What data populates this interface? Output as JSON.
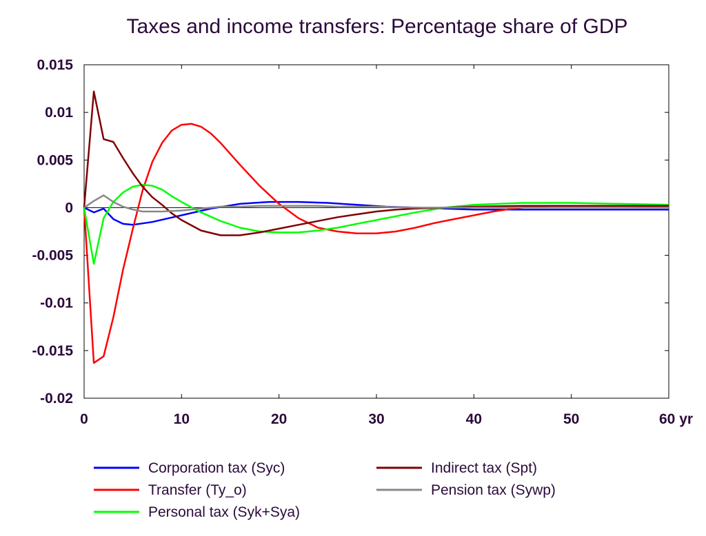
{
  "chart_data": {
    "type": "line",
    "title": "Taxes and income transfers: Percentage share of GDP",
    "xlabel": "",
    "ylabel": "",
    "xlim": [
      0,
      60
    ],
    "ylim": [
      -0.02,
      0.015
    ],
    "x_ticks": [
      0,
      10,
      20,
      30,
      40,
      50,
      60
    ],
    "x_tick_labels": [
      "0",
      "10",
      "20",
      "30",
      "40",
      "50",
      "60 yr"
    ],
    "y_ticks": [
      0.015,
      0.01,
      0.005,
      0,
      -0.005,
      -0.01,
      -0.015,
      -0.02
    ],
    "y_tick_labels": [
      "0.015",
      "0.01",
      "0.005",
      "0",
      "-0.005",
      "-0.01",
      "-0.015",
      "-0.02"
    ],
    "grid": false,
    "zero_line": true,
    "legend_position": "bottom",
    "series": [
      {
        "name": "Corporation tax (Syc)",
        "color": "#0000ff",
        "x": [
          0,
          1,
          2,
          3,
          4,
          5,
          7,
          10,
          13,
          16,
          19,
          22,
          25,
          28,
          31,
          34,
          37,
          40,
          45,
          50,
          55,
          60
        ],
        "y": [
          0,
          -0.0005,
          -0.0001,
          -0.0012,
          -0.0017,
          -0.0018,
          -0.0015,
          -0.0008,
          -0.0001,
          0.0004,
          0.0006,
          0.0006,
          0.0005,
          0.0003,
          0.0001,
          0.0,
          -0.0001,
          -0.0002,
          -0.0002,
          -0.0002,
          -0.0002,
          -0.0002
        ]
      },
      {
        "name": "Transfer (Ty_o)",
        "color": "#ff0000",
        "x": [
          0,
          1,
          2,
          3,
          4,
          5,
          6,
          7,
          8,
          9,
          10,
          11,
          12,
          13,
          14,
          16,
          18,
          20,
          22,
          24,
          26,
          28,
          30,
          32,
          34,
          36,
          38,
          40,
          42,
          44,
          46,
          48,
          50,
          55,
          60
        ],
        "y": [
          0,
          -0.0163,
          -0.0156,
          -0.0115,
          -0.0065,
          -0.0022,
          0.0018,
          0.0048,
          0.0068,
          0.0081,
          0.0087,
          0.0088,
          0.0085,
          0.0078,
          0.0068,
          0.0045,
          0.0023,
          0.0004,
          -0.0011,
          -0.0021,
          -0.0025,
          -0.0027,
          -0.0027,
          -0.0025,
          -0.0021,
          -0.0016,
          -0.0012,
          -0.0008,
          -0.0004,
          -0.0001,
          0.0001,
          0.0002,
          0.0002,
          0.0002,
          0.0001
        ]
      },
      {
        "name": "Personal tax (Syk+Sya)",
        "color": "#00ff00",
        "x": [
          0,
          1,
          2,
          3,
          4,
          5,
          6,
          7,
          8,
          9,
          10,
          12,
          14,
          16,
          18,
          20,
          22,
          24,
          26,
          28,
          30,
          32,
          34,
          37,
          40,
          45,
          50,
          55,
          60
        ],
        "y": [
          0,
          -0.0059,
          -0.0011,
          0.0006,
          0.0016,
          0.0022,
          0.0024,
          0.0023,
          0.0019,
          0.0012,
          0.0006,
          -0.0005,
          -0.0014,
          -0.0021,
          -0.0025,
          -0.0026,
          -0.0026,
          -0.0024,
          -0.0021,
          -0.0017,
          -0.0013,
          -0.0009,
          -0.0005,
          0.0,
          0.0003,
          0.0005,
          0.0005,
          0.0004,
          0.0003
        ]
      },
      {
        "name": "Indirect tax (Spt)",
        "color": "#800000",
        "x": [
          0,
          1,
          2,
          3,
          4,
          5,
          6,
          7,
          8,
          9,
          10,
          12,
          14,
          16,
          18,
          20,
          22,
          24,
          26,
          28,
          30,
          32,
          34,
          37,
          40,
          45,
          50,
          55,
          60
        ],
        "y": [
          0,
          0.0122,
          0.0072,
          0.0069,
          0.0052,
          0.0036,
          0.0022,
          0.0011,
          0.0003,
          -0.0006,
          -0.0013,
          -0.0024,
          -0.0029,
          -0.0029,
          -0.0026,
          -0.0022,
          -0.0018,
          -0.0014,
          -0.001,
          -0.0007,
          -0.0004,
          -0.0002,
          -0.0001,
          0.0,
          0.0001,
          0.0002,
          0.0002,
          0.0002,
          0.0002
        ]
      },
      {
        "name": "Pension tax (Sywp)",
        "color": "#888888",
        "x": [
          0,
          1,
          2,
          3,
          4,
          5,
          6,
          7,
          8,
          10,
          12,
          14,
          16,
          18,
          20,
          22,
          24,
          26,
          28,
          30,
          34,
          40,
          50,
          60
        ],
        "y": [
          0,
          0.0007,
          0.0013,
          0.0006,
          0.0001,
          -0.0002,
          -0.0004,
          -0.0004,
          -0.0004,
          -0.0003,
          -0.0001,
          0.0001,
          0.0001,
          0.0002,
          0.0002,
          0.0002,
          0.0002,
          0.0001,
          0.0001,
          0.0001,
          0.0,
          0.0,
          0.0,
          0.0
        ]
      }
    ],
    "legend_layout": [
      [
        "Corporation tax (Syc)",
        "Indirect tax (Spt)"
      ],
      [
        "Transfer (Ty_o)",
        "Pension tax (Sywp)"
      ],
      [
        "Personal tax (Syk+Sya)"
      ]
    ]
  }
}
